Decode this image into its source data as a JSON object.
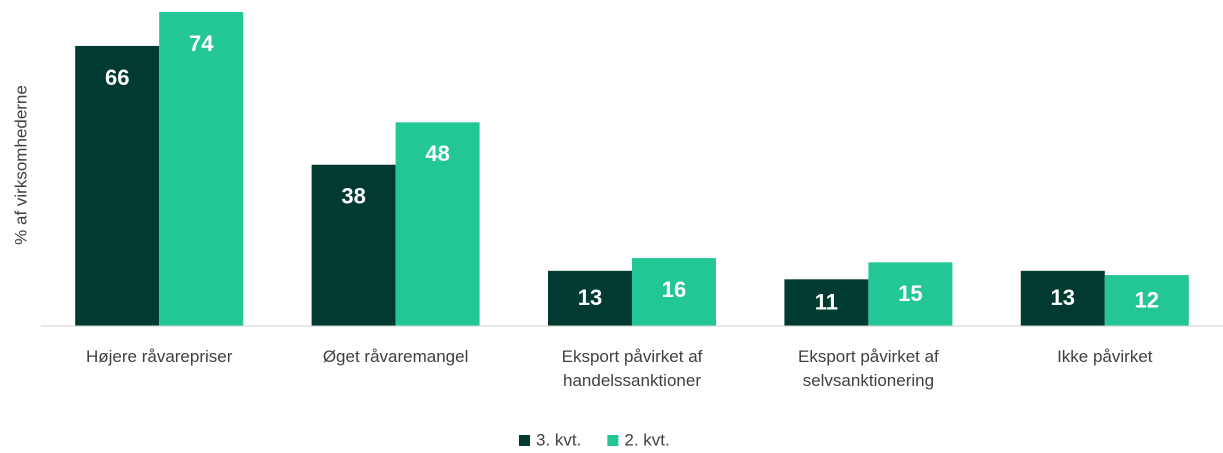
{
  "chart_data": {
    "type": "bar",
    "y_label": "% af virksomhederne",
    "categories": [
      "Højere råvarepriser",
      "Øget råvaremangel",
      "Eksport påvirket af handelssanktioner",
      "Eksport påvirket af selvsanktionering",
      "Ikke påvirket"
    ],
    "series": [
      {
        "name": "3. kvt.",
        "color": "#003a30",
        "values": [
          66,
          38,
          13,
          11,
          13
        ]
      },
      {
        "name": "2. kvt.",
        "color": "#23c695",
        "values": [
          74,
          48,
          16,
          15,
          12
        ]
      }
    ],
    "ylim": [
      0,
      74
    ],
    "legend": "bottom"
  }
}
